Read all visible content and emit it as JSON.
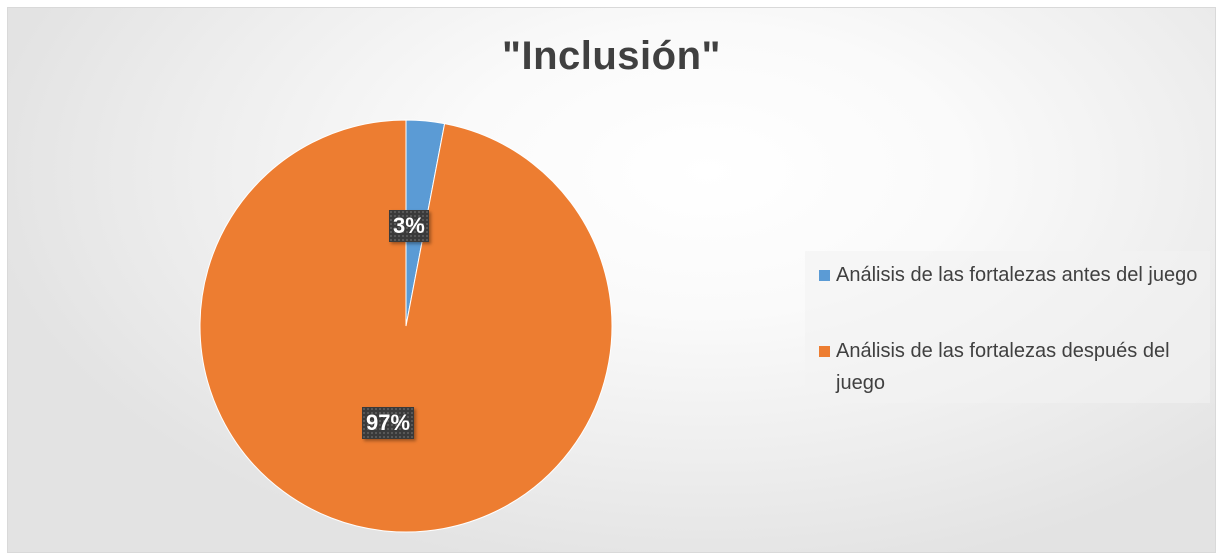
{
  "chart_data": {
    "type": "pie",
    "title": "\"Inclusión\"",
    "categories": [
      "Análisis de las fortalezas antes del juego",
      "Análisis de las fortalezas después del juego"
    ],
    "values": [
      3,
      97
    ],
    "data_labels": [
      "3%",
      "97%"
    ],
    "colors": [
      "#5b9bd5",
      "#ed7d31"
    ],
    "legend_position": "right"
  }
}
